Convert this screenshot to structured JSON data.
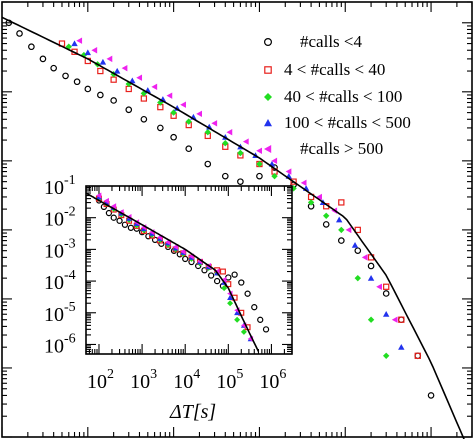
{
  "chart_data": [
    {
      "id": "main",
      "type": "scatter",
      "xscale": "log",
      "yscale": "log",
      "xlim": [
        10,
        3000000
      ],
      "ylim": [
        1e-07,
        0.2
      ],
      "grid": false,
      "legend_position": "top-right",
      "legend": [
        {
          "label": "#calls <4",
          "marker": "circle-open",
          "color": "#000000"
        },
        {
          "label": "4 < #calls < 40",
          "marker": "square-open",
          "color": "#e8201c"
        },
        {
          "label": "40 < #calls < 100",
          "marker": "diamond",
          "color": "#22dd22"
        },
        {
          "label": "100 < #calls < 500",
          "marker": "triangle-up",
          "color": "#2233ee"
        },
        {
          "label": "#calls > 500",
          "marker": "triangle-left",
          "color": "#ee22ee"
        }
      ],
      "fit_curve": {
        "x": [
          10,
          100,
          1000,
          10000,
          100000,
          300000,
          1000000,
          3000000
        ],
        "y": [
          0.12,
          0.03,
          0.006,
          0.0011,
          0.00015,
          2.2e-05,
          1.2e-06,
          5e-08
        ]
      },
      "series": [
        {
          "marker": "circle-open",
          "color": "#000000",
          "x": [
            12,
            16,
            22,
            30,
            40,
            55,
            75,
            100,
            140,
            200,
            300,
            450,
            700,
            1000,
            1500,
            2500,
            4000,
            6000,
            10000,
            15000,
            25000,
            40000,
            60000,
            90000,
            140000,
            200000,
            300000,
            450000,
            700000,
            1000000
          ],
          "y": [
            0.1,
            0.07,
            0.045,
            0.03,
            0.022,
            0.017,
            0.014,
            0.011,
            0.009,
            0.0075,
            0.0055,
            0.004,
            0.003,
            0.0022,
            0.0015,
            0.0009,
            0.0006,
            0.0005,
            0.0006,
            0.0008,
            0.00045,
            0.00022,
            0.00012,
            7e-05,
            5e-05,
            3e-05,
            1.2e-05,
            5e-06,
            1.5e-06,
            4e-07
          ]
        },
        {
          "marker": "square-open",
          "color": "#e8201c",
          "x": [
            50,
            70,
            100,
            140,
            200,
            300,
            450,
            700,
            1000,
            1500,
            2500,
            4000,
            6000,
            10000,
            15000,
            25000,
            40000,
            60000,
            90000,
            140000,
            200000,
            300000,
            450000,
            700000
          ],
          "y": [
            0.05,
            0.038,
            0.028,
            0.02,
            0.015,
            0.011,
            0.008,
            0.006,
            0.0045,
            0.0033,
            0.0023,
            0.0016,
            0.0012,
            0.0009,
            0.0007,
            0.0005,
            0.0003,
            0.00022,
            0.00025,
            0.0001,
            4e-05,
            1.5e-05,
            5e-06,
            1.5e-06
          ]
        },
        {
          "marker": "diamond",
          "color": "#22dd22",
          "x": [
            60,
            90,
            130,
            200,
            300,
            450,
            700,
            1000,
            1500,
            2500,
            4000,
            6000,
            10000,
            15000,
            25000,
            40000,
            60000,
            90000,
            140000,
            200000,
            300000
          ],
          "y": [
            0.045,
            0.034,
            0.025,
            0.018,
            0.013,
            0.0095,
            0.007,
            0.005,
            0.0037,
            0.0026,
            0.0018,
            0.0013,
            0.0009,
            0.0006,
            0.0004,
            0.00025,
            0.00016,
            0.0001,
            2e-05,
            5e-06,
            1.5e-06
          ]
        },
        {
          "marker": "triangle-up",
          "color": "#2233ee",
          "x": [
            70,
            100,
            150,
            220,
            330,
            500,
            750,
            1100,
            1700,
            2600,
            4000,
            6000,
            9000,
            14000,
            22000,
            35000,
            55000,
            85000,
            130000,
            200000,
            300000,
            450000
          ],
          "y": [
            0.05,
            0.037,
            0.027,
            0.02,
            0.0145,
            0.0105,
            0.0078,
            0.0058,
            0.0043,
            0.0031,
            0.0022,
            0.0016,
            0.0012,
            0.0009,
            0.0006,
            0.0004,
            0.00025,
            0.00014,
            6e-05,
            2e-05,
            6e-06,
            2e-06
          ]
        },
        {
          "marker": "triangle-left",
          "color": "#ee22ee",
          "x": [
            80,
            120,
            180,
            270,
            400,
            600,
            900,
            1300,
            2000,
            3000,
            4500,
            7000,
            10000,
            15000,
            22000,
            33000,
            50000,
            75000,
            110000,
            170000,
            250000,
            380000
          ],
          "y": [
            0.055,
            0.04,
            0.03,
            0.022,
            0.016,
            0.0118,
            0.0088,
            0.0065,
            0.0048,
            0.0035,
            0.0026,
            0.0019,
            0.0014,
            0.001,
            0.0007,
            0.00048,
            0.0003,
            0.00019,
            0.0001,
            4e-05,
            1.5e-05,
            5e-06
          ]
        }
      ]
    },
    {
      "id": "inset",
      "type": "scatter",
      "xscale": "log",
      "yscale": "log",
      "xlim": [
        50,
        3000000
      ],
      "ylim": [
        5e-07,
        0.1
      ],
      "xlabel": "ΔT[s]",
      "x_ticks": [
        {
          "value": 100,
          "label": "10",
          "exp": "2"
        },
        {
          "value": 1000,
          "label": "10",
          "exp": "3"
        },
        {
          "value": 10000,
          "label": "10",
          "exp": "4"
        },
        {
          "value": 100000,
          "label": "10",
          "exp": "5"
        },
        {
          "value": 1000000,
          "label": "10",
          "exp": "6"
        }
      ],
      "y_ticks": [
        {
          "value": 0.1,
          "label": "10",
          "exp": "-1"
        },
        {
          "value": 0.01,
          "label": "10",
          "exp": "-2"
        },
        {
          "value": 0.001,
          "label": "10",
          "exp": "-3"
        },
        {
          "value": 0.0001,
          "label": "10",
          "exp": "-4"
        },
        {
          "value": 1e-05,
          "label": "10",
          "exp": "-5"
        },
        {
          "value": 1e-06,
          "label": "10",
          "exp": "-6"
        }
      ],
      "fit_curve": {
        "x": [
          50,
          100,
          1000,
          10000,
          50000,
          100000,
          200000,
          300000,
          500000
        ],
        "y": [
          0.06,
          0.035,
          0.006,
          0.001,
          0.00022,
          6e-05,
          8e-06,
          2.5e-06,
          6e-07
        ]
      },
      "series": [
        {
          "marker": "circle-open",
          "color": "#000000",
          "x": [
            100,
            130,
            170,
            220,
            300,
            400,
            550,
            750,
            1000,
            1400,
            2000,
            2800,
            4000,
            5500,
            7500,
            10000,
            14000,
            20000,
            28000,
            40000,
            55000,
            75000,
            100000,
            140000,
            200000,
            280000,
            400000,
            550000,
            750000
          ],
          "y": [
            0.035,
            0.022,
            0.014,
            0.01,
            0.008,
            0.006,
            0.0048,
            0.0045,
            0.0035,
            0.0026,
            0.002,
            0.0015,
            0.0012,
            0.0009,
            0.0007,
            0.0005,
            0.0004,
            0.0003,
            0.00022,
            0.00015,
            0.0001,
            7e-05,
            0.00013,
            0.00016,
            9e-05,
            4e-05,
            1.5e-05,
            6e-06,
            3e-06
          ]
        },
        {
          "marker": "square-open",
          "color": "#e8201c",
          "x": [
            100,
            150,
            220,
            330,
            500,
            750,
            1100,
            1700,
            2600,
            4000,
            6000,
            9000,
            14000,
            22000,
            35000,
            55000,
            75000,
            100000,
            140000,
            200000,
            280000
          ],
          "y": [
            0.04,
            0.027,
            0.018,
            0.012,
            0.008,
            0.0055,
            0.0038,
            0.0027,
            0.0019,
            0.0014,
            0.001,
            0.00075,
            0.00055,
            0.0004,
            0.00028,
            0.00022,
            0.0002,
            8e-05,
            3e-05,
            1e-05,
            3.5e-06
          ]
        },
        {
          "marker": "diamond",
          "color": "#22dd22",
          "x": [
            100,
            150,
            220,
            330,
            500,
            750,
            1100,
            1700,
            2600,
            4000,
            6000,
            9000,
            14000,
            22000,
            35000,
            55000,
            80000,
            110000,
            160000,
            230000
          ],
          "y": [
            0.04,
            0.028,
            0.019,
            0.0125,
            0.0085,
            0.0058,
            0.004,
            0.0029,
            0.002,
            0.0014,
            0.001,
            0.00072,
            0.0005,
            0.00036,
            0.00026,
            0.00018,
            6e-05,
            2e-05,
            6e-06,
            2.5e-06
          ]
        },
        {
          "marker": "triangle-up",
          "color": "#2233ee",
          "x": [
            100,
            150,
            220,
            330,
            500,
            750,
            1100,
            1700,
            2600,
            4000,
            6000,
            9000,
            14000,
            22000,
            35000,
            55000,
            80000,
            110000,
            160000,
            230000,
            330000
          ],
          "y": [
            0.045,
            0.031,
            0.021,
            0.014,
            0.0095,
            0.0065,
            0.0045,
            0.0032,
            0.0022,
            0.0016,
            0.0011,
            0.0008,
            0.00056,
            0.0004,
            0.00028,
            0.00018,
            9e-05,
            3e-05,
            1e-05,
            4e-06,
            1.5e-06
          ]
        },
        {
          "marker": "triangle-left",
          "color": "#ee22ee",
          "x": [
            100,
            150,
            220,
            330,
            500,
            750,
            1100,
            1700,
            2600,
            4000,
            6000,
            9000,
            14000,
            22000,
            35000,
            55000,
            80000,
            110000,
            160000,
            230000,
            330000
          ],
          "y": [
            0.05,
            0.034,
            0.023,
            0.015,
            0.0105,
            0.0072,
            0.005,
            0.0035,
            0.0024,
            0.0017,
            0.0012,
            0.00085,
            0.0006,
            0.00042,
            0.0003,
            0.0002,
            0.00011,
            4e-05,
            1.2e-05,
            4e-06,
            1.5e-06
          ]
        }
      ]
    }
  ]
}
